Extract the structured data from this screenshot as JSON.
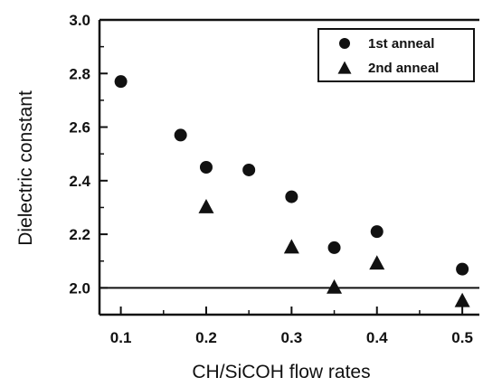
{
  "chart_data": {
    "type": "scatter",
    "xlabel": "CH/SiCOH flow rates",
    "ylabel": "Dielectric constant",
    "xlim": [
      0.075,
      0.52
    ],
    "ylim": [
      1.9,
      3.0
    ],
    "xticks": [
      0.1,
      0.2,
      0.3,
      0.4,
      0.5
    ],
    "xtick_labels": [
      "0.1",
      "0.2",
      "0.3",
      "0.4",
      "0.5"
    ],
    "yticks": [
      2.0,
      2.2,
      2.4,
      2.6,
      2.8,
      3.0
    ],
    "ytick_labels": [
      "2.0",
      "2.2",
      "2.4",
      "2.6",
      "2.8",
      "3.0"
    ],
    "reference_line_y": 2.0,
    "legend_position": "top-right",
    "series": [
      {
        "name": "1st anneal",
        "marker": "circle",
        "x": [
          0.1,
          0.17,
          0.2,
          0.25,
          0.3,
          0.35,
          0.4,
          0.5
        ],
        "y": [
          2.77,
          2.57,
          2.45,
          2.44,
          2.34,
          2.15,
          2.21,
          2.07
        ]
      },
      {
        "name": "2nd anneal",
        "marker": "triangle",
        "x": [
          0.2,
          0.3,
          0.35,
          0.4,
          0.5
        ],
        "y": [
          2.3,
          2.15,
          2.0,
          2.09,
          1.95
        ]
      }
    ],
    "colors": {
      "marker": "#111111",
      "axis": "#111111"
    }
  }
}
